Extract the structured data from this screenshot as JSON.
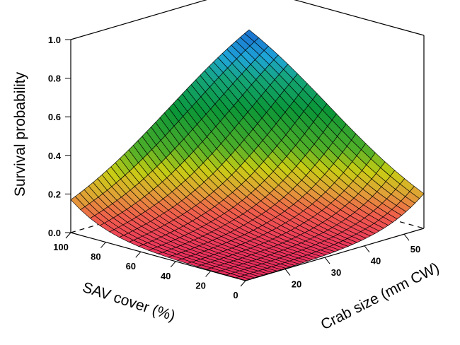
{
  "chart_data": {
    "type": "surface3d",
    "zlabel": "Survival probability",
    "xlabel": "Crab size (mm CW)",
    "ylabel": "SAV cover (%)",
    "zlim": [
      0,
      1.0
    ],
    "xlim": [
      10,
      55
    ],
    "ylim": [
      0,
      100
    ],
    "z_ticks": [
      "0.0",
      "0.2",
      "0.4",
      "0.6",
      "0.8",
      "1.0"
    ],
    "x_ticks": [
      "20",
      "30",
      "40",
      "50"
    ],
    "y_ticks": [
      "0",
      "20",
      "40",
      "60",
      "80",
      "100"
    ],
    "grid_x": [
      10,
      55
    ],
    "grid_y": [
      0,
      100
    ],
    "corner_values": [
      {
        "crab_size_mm": 10,
        "sav_cover_pct": 0,
        "survival": 0.0
      },
      {
        "crab_size_mm": 55,
        "sav_cover_pct": 0,
        "survival": 0.18
      },
      {
        "crab_size_mm": 10,
        "sav_cover_pct": 100,
        "survival": 0.17
      },
      {
        "crab_size_mm": 55,
        "sav_cover_pct": 100,
        "survival": 0.78
      }
    ]
  }
}
